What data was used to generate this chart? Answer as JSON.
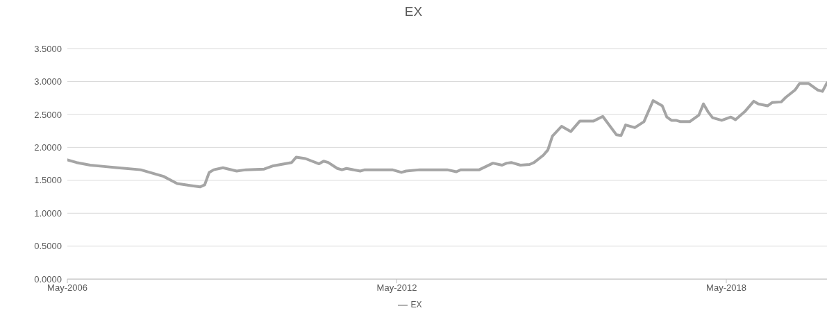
{
  "chart_data": {
    "type": "line",
    "title": "EX",
    "x": [
      "2006-05",
      "2006-07",
      "2006-10",
      "2007-01",
      "2007-04",
      "2007-09",
      "2008-02",
      "2008-05",
      "2008-08",
      "2008-10",
      "2008-11",
      "2008-12",
      "2009-01",
      "2009-03",
      "2009-06",
      "2009-08",
      "2009-12",
      "2010-02",
      "2010-06",
      "2010-07",
      "2010-09",
      "2010-12",
      "2011-01",
      "2011-02",
      "2011-04",
      "2011-05",
      "2011-06",
      "2011-09",
      "2011-10",
      "2012-04",
      "2012-06",
      "2012-07",
      "2012-10",
      "2013-04",
      "2013-06",
      "2013-07",
      "2013-11",
      "2014-02",
      "2014-04",
      "2014-05",
      "2014-06",
      "2014-08",
      "2014-10",
      "2014-11",
      "2015-01",
      "2015-02",
      "2015-03",
      "2015-05",
      "2015-07",
      "2015-09",
      "2015-12",
      "2016-02",
      "2016-05",
      "2016-06",
      "2016-07",
      "2016-09",
      "2016-11",
      "2017-01",
      "2017-03",
      "2017-04",
      "2017-05",
      "2017-06",
      "2017-07",
      "2017-09",
      "2017-11",
      "2017-12",
      "2018-01",
      "2018-02",
      "2018-04",
      "2018-06",
      "2018-07",
      "2018-09",
      "2018-11",
      "2018-12",
      "2019-02",
      "2019-03",
      "2019-05",
      "2019-06",
      "2019-08",
      "2019-09",
      "2019-11",
      "2020-01",
      "2020-02",
      "2020-03"
    ],
    "series": [
      {
        "name": "EX",
        "color": "#a5a5a5",
        "values": [
          1.81,
          1.77,
          1.73,
          1.71,
          1.69,
          1.66,
          1.56,
          1.45,
          1.42,
          1.4,
          1.43,
          1.62,
          1.66,
          1.69,
          1.64,
          1.66,
          1.67,
          1.72,
          1.77,
          1.85,
          1.83,
          1.75,
          1.79,
          1.77,
          1.68,
          1.66,
          1.68,
          1.64,
          1.66,
          1.66,
          1.62,
          1.64,
          1.66,
          1.66,
          1.63,
          1.66,
          1.66,
          1.76,
          1.73,
          1.76,
          1.77,
          1.73,
          1.74,
          1.77,
          1.88,
          1.96,
          2.17,
          2.32,
          2.24,
          2.4,
          2.4,
          2.47,
          2.19,
          2.18,
          2.34,
          2.3,
          2.39,
          2.71,
          2.63,
          2.46,
          2.41,
          2.41,
          2.39,
          2.39,
          2.49,
          2.66,
          2.54,
          2.45,
          2.41,
          2.46,
          2.42,
          2.54,
          2.7,
          2.66,
          2.63,
          2.68,
          2.69,
          2.76,
          2.87,
          2.97,
          2.97,
          2.87,
          2.85,
          2.98
        ]
      }
    ],
    "xlim": [
      "2006-05",
      "2020-03"
    ],
    "xticks": [
      {
        "value": "2006-05",
        "label": "May-2006"
      },
      {
        "value": "2012-05",
        "label": "May-2012"
      },
      {
        "value": "2018-05",
        "label": "May-2018"
      }
    ],
    "ylim": [
      0,
      3.5
    ],
    "yticks": [
      {
        "value": 0,
        "label": "0.0000"
      },
      {
        "value": 0.5,
        "label": "0.5000"
      },
      {
        "value": 1,
        "label": "1.0000"
      },
      {
        "value": 1.5,
        "label": "1.5000"
      },
      {
        "value": 2,
        "label": "2.0000"
      },
      {
        "value": 2.5,
        "label": "2.5000"
      },
      {
        "value": 3,
        "label": "3.0000"
      },
      {
        "value": 3.5,
        "label": "3.5000"
      }
    ],
    "grid": "y",
    "legend": "bottom"
  }
}
